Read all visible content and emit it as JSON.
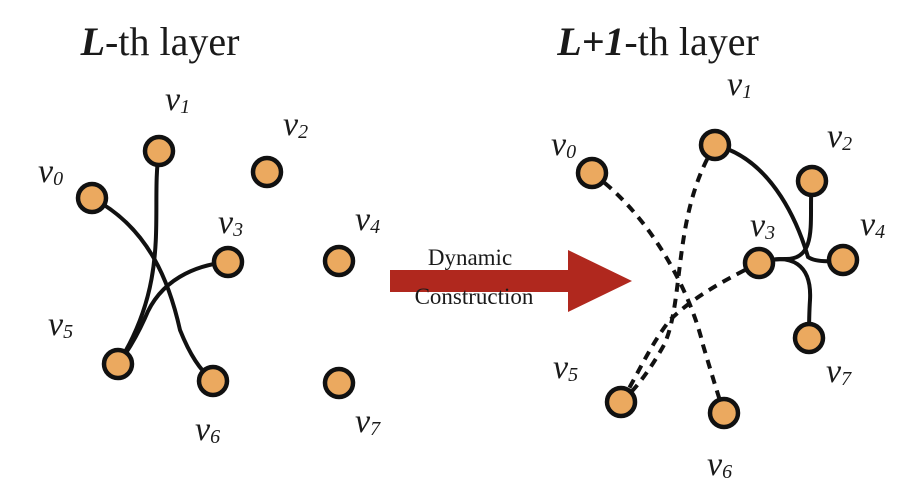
{
  "left_graph": {
    "title_var": "L",
    "title_rest": "-th layer",
    "nodes": [
      {
        "letter": "v",
        "sub": "0"
      },
      {
        "letter": "v",
        "sub": "1"
      },
      {
        "letter": "v",
        "sub": "2"
      },
      {
        "letter": "v",
        "sub": "3"
      },
      {
        "letter": "v",
        "sub": "4"
      },
      {
        "letter": "v",
        "sub": "5"
      },
      {
        "letter": "v",
        "sub": "6"
      },
      {
        "letter": "v",
        "sub": "7"
      }
    ],
    "edges": [
      {
        "from": "v0",
        "to": "v6",
        "style": "solid"
      },
      {
        "from": "v1",
        "to": "v5",
        "style": "solid"
      },
      {
        "from": "v3",
        "to": "v5",
        "style": "solid"
      }
    ]
  },
  "right_graph": {
    "title_var": "L+1",
    "title_rest": "-th layer",
    "nodes": [
      {
        "letter": "v",
        "sub": "0"
      },
      {
        "letter": "v",
        "sub": "1"
      },
      {
        "letter": "v",
        "sub": "2"
      },
      {
        "letter": "v",
        "sub": "3"
      },
      {
        "letter": "v",
        "sub": "4"
      },
      {
        "letter": "v",
        "sub": "5"
      },
      {
        "letter": "v",
        "sub": "6"
      },
      {
        "letter": "v",
        "sub": "7"
      }
    ],
    "edges": [
      {
        "from": "v0",
        "to": "v6",
        "style": "dashed"
      },
      {
        "from": "v1",
        "to": "v5",
        "style": "dashed"
      },
      {
        "from": "v3",
        "to": "v5",
        "style": "dashed"
      },
      {
        "from": "v1",
        "to": "v4",
        "style": "solid"
      },
      {
        "from": "v2",
        "to": "v3",
        "style": "solid"
      },
      {
        "from": "v3",
        "to": "v7",
        "style": "solid"
      }
    ]
  },
  "arrow": {
    "line1": "Dynamic",
    "line2": "Construction",
    "color": "#B0281E"
  },
  "colors": {
    "node_fill": "#EBA95F",
    "stroke": "#111111"
  }
}
